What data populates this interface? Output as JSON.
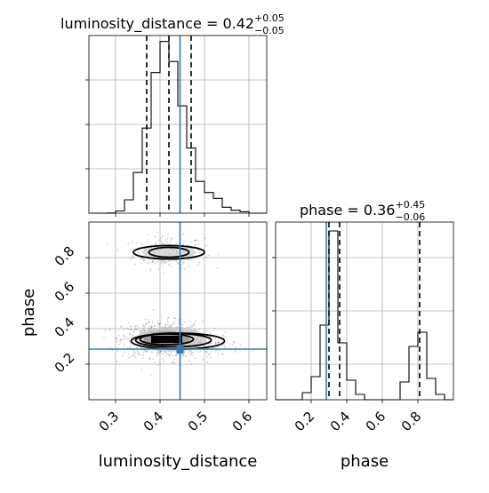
{
  "chart_data": [
    {
      "type": "histogram",
      "panel": "luminosity_distance marginal",
      "title_param": "luminosity_distance",
      "title_value": "0.42",
      "title_sup": "+0.05",
      "title_sub": "−0.05",
      "xlim": [
        0.24,
        0.64
      ],
      "bin_edges": [
        0.24,
        0.26,
        0.28,
        0.3,
        0.32,
        0.34,
        0.36,
        0.38,
        0.4,
        0.42,
        0.44,
        0.46,
        0.48,
        0.5,
        0.52,
        0.54,
        0.56,
        0.58,
        0.6,
        0.62,
        0.64
      ],
      "counts": [
        0,
        0,
        0.2,
        3,
        18,
        55,
        115,
        190,
        232,
        205,
        145,
        88,
        43,
        28,
        20,
        8,
        4,
        2,
        0,
        0
      ],
      "ylim": [
        0,
        240
      ],
      "quantiles": [
        0.37,
        0.42,
        0.47
      ],
      "truth": 0.445,
      "grid": true
    },
    {
      "type": "histogram",
      "panel": "phase marginal",
      "title_param": "phase",
      "title_value": "0.36",
      "title_sup": "+0.45",
      "title_sub": "−0.06",
      "xlim": [
        0.0,
        1.0
      ],
      "xticks": [
        0.2,
        0.4,
        0.6,
        0.8
      ],
      "xticklabels": [
        "0.2",
        "0.4",
        "0.6",
        "0.8"
      ],
      "xlabel": "phase",
      "bin_edges": [
        0.0,
        0.05,
        0.1,
        0.15,
        0.2,
        0.25,
        0.3,
        0.35,
        0.4,
        0.45,
        0.5,
        0.55,
        0.6,
        0.65,
        0.7,
        0.75,
        0.8,
        0.85,
        0.9,
        0.95,
        1.0
      ],
      "counts": [
        0,
        0,
        0,
        4,
        13,
        42,
        95,
        32,
        11,
        3,
        0,
        0,
        0,
        0,
        10,
        30,
        38,
        12,
        3,
        0
      ],
      "ylim": [
        0,
        100
      ],
      "quantiles": [
        0.3,
        0.36,
        0.81
      ],
      "truth": 0.285,
      "grid": true
    },
    {
      "type": "scatter",
      "panel": "2d density luminosity_distance vs phase",
      "xlabel": "luminosity_distance",
      "ylabel": "phase",
      "xlim": [
        0.24,
        0.64
      ],
      "ylim": [
        0.0,
        1.0
      ],
      "xticks": [
        0.3,
        0.4,
        0.5,
        0.6
      ],
      "xticklabels": [
        "0.3",
        "0.4",
        "0.5",
        "0.6"
      ],
      "yticks": [
        0.2,
        0.4,
        0.6,
        0.8
      ],
      "yticklabels": [
        "0.2",
        "0.4",
        "0.6",
        "0.8"
      ],
      "clusters": [
        {
          "cx": 0.42,
          "cy": 0.83,
          "sx": 0.04,
          "sy": 0.045,
          "n": 260
        },
        {
          "cx": 0.405,
          "cy": 0.34,
          "sx": 0.045,
          "sy": 0.05,
          "n": 720
        },
        {
          "cx": 0.49,
          "cy": 0.31,
          "sx": 0.045,
          "sy": 0.035,
          "n": 160
        }
      ],
      "contours": [
        {
          "cx": 0.42,
          "cy": 0.83,
          "rx": 0.045,
          "ry": 0.055
        },
        {
          "cx": 0.42,
          "cy": 0.83,
          "rx": 0.08,
          "ry": 0.075
        },
        {
          "cx": 0.415,
          "cy": 0.34,
          "rx": 0.06,
          "ry": 0.06
        },
        {
          "cx": 0.43,
          "cy": 0.335,
          "rx": 0.085,
          "ry": 0.075
        },
        {
          "cx": 0.44,
          "cy": 0.33,
          "rx": 0.105,
          "ry": 0.09
        }
      ],
      "density_peak": {
        "x": [
          0.38,
          0.45
        ],
        "y": [
          0.32,
          0.36
        ]
      },
      "truth_x": 0.445,
      "truth_y": 0.285,
      "grid": true
    }
  ]
}
